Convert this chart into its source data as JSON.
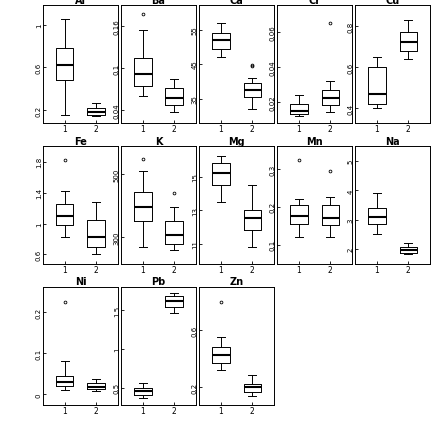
{
  "elements": [
    {
      "name": "Al",
      "yticks": [
        0.2,
        0.6,
        1.0
      ],
      "ylim": [
        0.08,
        1.18
      ],
      "group1": {
        "whislo": 0.15,
        "q1": 0.48,
        "med": 0.62,
        "q3": 0.78,
        "whishi": 1.05,
        "fliers": []
      },
      "group2": {
        "whislo": 0.14,
        "q1": 0.155,
        "med": 0.185,
        "q3": 0.215,
        "whishi": 0.27,
        "fliers": []
      }
    },
    {
      "name": "Ba",
      "yticks": [
        0.04,
        0.1,
        0.16
      ],
      "ylim": [
        0.022,
        0.19
      ],
      "group1": {
        "whislo": 0.06,
        "q1": 0.075,
        "med": 0.092,
        "q3": 0.115,
        "whishi": 0.155,
        "fliers": [
          0.178
        ]
      },
      "group2": {
        "whislo": 0.038,
        "q1": 0.048,
        "med": 0.058,
        "q3": 0.072,
        "whishi": 0.085,
        "fliers": []
      }
    },
    {
      "name": "Ca",
      "yticks": [
        35,
        45,
        55
      ],
      "ylim": [
        28,
        62
      ],
      "group1": {
        "whislo": 47,
        "q1": 49.5,
        "med": 52,
        "q3": 54,
        "whishi": 57,
        "fliers": []
      },
      "group2": {
        "whislo": 32,
        "q1": 35.5,
        "med": 37.5,
        "q3": 39.5,
        "whishi": 41,
        "fliers": [
          44.5,
          44.8
        ]
      }
    },
    {
      "name": "Cr",
      "yticks": [
        0.02,
        0.04,
        0.06
      ],
      "ylim": [
        0.008,
        0.075
      ],
      "group1": {
        "whislo": 0.012,
        "q1": 0.013,
        "med": 0.015,
        "q3": 0.019,
        "whishi": 0.024,
        "fliers": []
      },
      "group2": {
        "whislo": 0.014,
        "q1": 0.018,
        "med": 0.022,
        "q3": 0.027,
        "whishi": 0.032,
        "fliers": [
          0.065
        ]
      }
    },
    {
      "name": "Cu",
      "yticks": [
        0.4,
        0.6,
        0.8
      ],
      "ylim": [
        0.33,
        0.9
      ],
      "group1": {
        "whislo": 0.4,
        "q1": 0.42,
        "med": 0.47,
        "q3": 0.6,
        "whishi": 0.65,
        "fliers": []
      },
      "group2": {
        "whislo": 0.64,
        "q1": 0.68,
        "med": 0.72,
        "q3": 0.77,
        "whishi": 0.83,
        "fliers": []
      }
    },
    {
      "name": "Fe",
      "yticks": [
        0.6,
        1.0,
        1.4,
        1.8
      ],
      "ylim": [
        0.48,
        2.0
      ],
      "group1": {
        "whislo": 0.82,
        "q1": 0.98,
        "med": 1.1,
        "q3": 1.25,
        "whishi": 1.42,
        "fliers": [
          1.82
        ]
      },
      "group2": {
        "whislo": 0.6,
        "q1": 0.7,
        "med": 0.82,
        "q3": 1.05,
        "whishi": 1.28,
        "fliers": []
      }
    },
    {
      "name": "K",
      "yticks": [
        300,
        500
      ],
      "ylim": [
        215,
        590
      ],
      "group1": {
        "whislo": 270,
        "q1": 350,
        "med": 395,
        "q3": 445,
        "whishi": 510,
        "fliers": [
          548
        ]
      },
      "group2": {
        "whislo": 260,
        "q1": 278,
        "med": 308,
        "q3": 352,
        "whishi": 395,
        "fliers": [
          440
        ]
      }
    },
    {
      "name": "Mg",
      "yticks": [
        11,
        13,
        15
      ],
      "ylim": [
        9.8,
        16.8
      ],
      "group1": {
        "whislo": 13.5,
        "q1": 14.5,
        "med": 15.2,
        "q3": 15.8,
        "whishi": 16.2,
        "fliers": []
      },
      "group2": {
        "whislo": 10.8,
        "q1": 11.8,
        "med": 12.5,
        "q3": 13.0,
        "whishi": 14.5,
        "fliers": []
      }
    },
    {
      "name": "Mn",
      "yticks": [
        0.1,
        0.2,
        0.3
      ],
      "ylim": [
        0.05,
        0.36
      ],
      "group1": {
        "whislo": 0.12,
        "q1": 0.155,
        "med": 0.175,
        "q3": 0.205,
        "whishi": 0.22,
        "fliers": [
          0.325
        ]
      },
      "group2": {
        "whislo": 0.12,
        "q1": 0.152,
        "med": 0.172,
        "q3": 0.205,
        "whishi": 0.225,
        "fliers": [
          0.295
        ]
      }
    },
    {
      "name": "Na",
      "yticks": [
        2.0,
        3.0,
        4.0,
        5.0
      ],
      "ylim": [
        1.5,
        5.5
      ],
      "group1": {
        "whislo": 2.5,
        "q1": 2.85,
        "med": 3.08,
        "q3": 3.4,
        "whishi": 3.9,
        "fliers": []
      },
      "group2": {
        "whislo": 1.82,
        "q1": 1.88,
        "med": 1.98,
        "q3": 2.08,
        "whishi": 2.2,
        "fliers": []
      }
    },
    {
      "name": "Ni",
      "yticks": [
        0.0,
        0.1,
        0.2
      ],
      "ylim": [
        -0.025,
        0.26
      ],
      "group1": {
        "whislo": 0.01,
        "q1": 0.02,
        "med": 0.03,
        "q3": 0.045,
        "whishi": 0.08,
        "fliers": [
          0.225
        ]
      },
      "group2": {
        "whislo": 0.008,
        "q1": 0.012,
        "med": 0.018,
        "q3": 0.028,
        "whishi": 0.038,
        "fliers": []
      }
    },
    {
      "name": "Pb",
      "yticks": [
        0.5,
        1.0,
        1.5
      ],
      "ylim": [
        0.28,
        1.8
      ],
      "group1": {
        "whislo": 0.36,
        "q1": 0.41,
        "med": 0.455,
        "q3": 0.5,
        "whishi": 0.56,
        "fliers": []
      },
      "group2": {
        "whislo": 1.47,
        "q1": 1.55,
        "med": 1.62,
        "q3": 1.68,
        "whishi": 1.72,
        "fliers": []
      }
    },
    {
      "name": "Zn",
      "yticks": [
        0.2,
        0.6
      ],
      "ylim": [
        0.08,
        0.9
      ],
      "group1": {
        "whislo": 0.32,
        "q1": 0.37,
        "med": 0.43,
        "q3": 0.48,
        "whishi": 0.55,
        "fliers": [
          0.8
        ]
      },
      "group2": {
        "whislo": 0.14,
        "q1": 0.17,
        "med": 0.2,
        "q3": 0.225,
        "whishi": 0.285,
        "fliers": []
      }
    }
  ],
  "row1": [
    "Al",
    "Ba",
    "Ca",
    "Cr",
    "Cu"
  ],
  "row2": [
    "Fe",
    "K",
    "Mg",
    "Mn",
    "Na"
  ],
  "row3": [
    "Ni",
    "Pb",
    "Zn"
  ]
}
